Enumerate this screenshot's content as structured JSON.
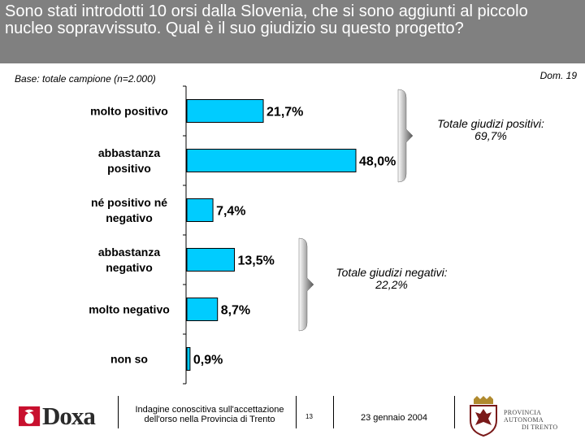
{
  "header": {
    "title": "Sono stati introdotti 10 orsi dalla Slovenia, che si sono aggiunti al piccolo nucleo sopravvissuto. Qual è il suo giudizio su questo progetto?"
  },
  "base_note": "Base: totale campione (n=2.000)",
  "dom_note": "Dom. 19",
  "chart_data": {
    "type": "bar",
    "orientation": "horizontal",
    "categories": [
      "molto positivo",
      "abbastanza positivo",
      "né positivo né negativo",
      "abbastanza negativo",
      "molto negativo",
      "non so"
    ],
    "category_lines": [
      [
        "molto positivo"
      ],
      [
        "abbastanza",
        "positivo"
      ],
      [
        "né positivo né",
        "negativo"
      ],
      [
        "abbastanza",
        "negativo"
      ],
      [
        "molto negativo"
      ],
      [
        "non so"
      ]
    ],
    "values": [
      21.7,
      48.0,
      7.4,
      13.5,
      8.7,
      0.9
    ],
    "value_labels": [
      "21,7%",
      "48,0%",
      "7,4%",
      "13,5%",
      "8,7%",
      "0,9%"
    ],
    "xlim": [
      0,
      50
    ],
    "bar_color": "#00ccff",
    "grid": false,
    "annotations": [
      {
        "label": "Totale giudizi positivi:",
        "value": "69,7%",
        "categories": [
          0,
          1
        ]
      },
      {
        "label": "Totale giudizi negativi:",
        "value": "22,2%",
        "categories": [
          3,
          4
        ]
      }
    ]
  },
  "footer": {
    "logo_text": "Doxa",
    "study_line1": "Indagine conoscitiva sull'accettazione",
    "study_line2": "dell'orso nella Provincia di Trento",
    "page_number": "13",
    "date": "23 gennaio 2004",
    "province_line1": "PROVINCIA AUTONOMA",
    "province_line2": "DI TRENTO"
  }
}
